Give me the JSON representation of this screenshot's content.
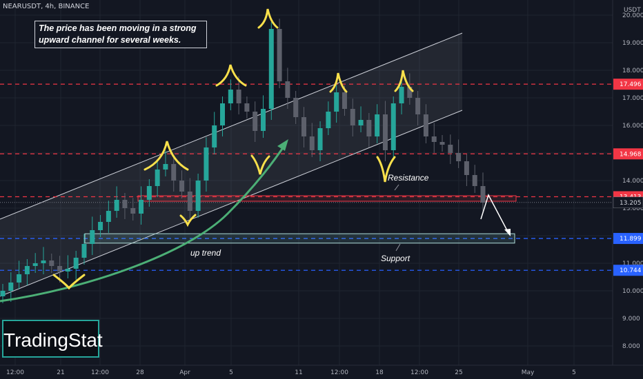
{
  "header": {
    "symbol_line": "NEARUSDT, 4h, BINANCE"
  },
  "note": "The price has been moving in a strong upward channel for several weeks.",
  "brand": "TradingStat",
  "colors": {
    "background": "#131722",
    "grid": "#1f2430",
    "up_candle": "#26a69a",
    "down_candle": "#5d606b",
    "resistance_line": "#f23645",
    "support_line": "#2962ff",
    "curve": "#4caf76",
    "marker": "#f9e04b",
    "channel": "#d1d4dc"
  },
  "chart_data": {
    "type": "candlestick",
    "symbol": "NEARUSDT",
    "interval": "4h",
    "exchange": "BINANCE",
    "currency": "USDT",
    "ylim": [
      7.5,
      20.0
    ],
    "y_ticks": [
      8.0,
      9.0,
      10.0,
      11.0,
      12.0,
      13.0,
      14.0,
      15.0,
      16.0,
      17.0,
      18.0,
      19.0,
      20.0
    ],
    "x_tick_labels": [
      "12:00",
      "21",
      "12:00",
      "28",
      "Apr",
      "5",
      "11",
      "12:00",
      "18",
      "12:00",
      "25",
      "May",
      "5"
    ],
    "last_price": 13.205,
    "levels": [
      {
        "value": 17.496,
        "kind": "resistance",
        "style": "dashed"
      },
      {
        "value": 14.968,
        "kind": "resistance",
        "style": "dashed"
      },
      {
        "value": 13.413,
        "kind": "resistance",
        "style": "dashed"
      },
      {
        "value": 11.899,
        "kind": "support",
        "style": "dashed"
      },
      {
        "value": 10.744,
        "kind": "support",
        "style": "dashed"
      }
    ],
    "zones": [
      {
        "label": "Resistance",
        "from": 13.25,
        "to": 13.45
      },
      {
        "label": "Support",
        "from": 11.73,
        "to": 12.07
      }
    ],
    "annotations": [
      "up trend",
      "Resistance",
      "Support"
    ],
    "closes": [
      10.0,
      10.3,
      10.6,
      10.9,
      11.0,
      11.1,
      10.9,
      10.7,
      10.8,
      11.2,
      11.7,
      12.2,
      12.5,
      12.9,
      13.3,
      13.0,
      12.8,
      13.3,
      13.8,
      14.4,
      14.6,
      14.0,
      13.6,
      12.9,
      14.0,
      15.2,
      16.0,
      16.8,
      17.3,
      16.8,
      16.5,
      15.8,
      16.6,
      19.5,
      17.6,
      17.0,
      16.3,
      15.6,
      15.1,
      15.9,
      16.5,
      17.2,
      16.6,
      16.0,
      16.2,
      15.6,
      16.4,
      15.1,
      16.8,
      17.4,
      17.0,
      16.4,
      15.6,
      15.4,
      15.3,
      15.0,
      14.7,
      14.2,
      13.8,
      13.2
    ]
  }
}
